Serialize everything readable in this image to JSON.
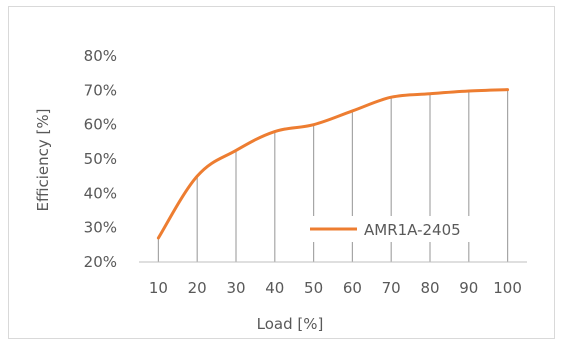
{
  "chart_data": {
    "type": "line",
    "title": "",
    "xlabel": "Load [%]",
    "ylabel": "Efficiency [%]",
    "categories": [
      "10",
      "20",
      "30",
      "40",
      "50",
      "60",
      "70",
      "80",
      "90",
      "100"
    ],
    "y_ticks": [
      "20%",
      "30%",
      "40%",
      "50%",
      "60%",
      "70%",
      "80%"
    ],
    "ylim": [
      20,
      80
    ],
    "grid": "vertical drop lines at each category",
    "legend_position": "inside-bottom-right",
    "series": [
      {
        "name": "AMR1A-2405",
        "color": "#ED7D31",
        "values": [
          27,
          45,
          52.5,
          58,
          60,
          64,
          68,
          69,
          69.8,
          70.2
        ]
      }
    ]
  },
  "colors": {
    "line": "#ED7D31",
    "drop_lines": "#a6a6a6",
    "axis": "#bfbfbf",
    "text": "#595959",
    "border": "#d9d9d9"
  }
}
